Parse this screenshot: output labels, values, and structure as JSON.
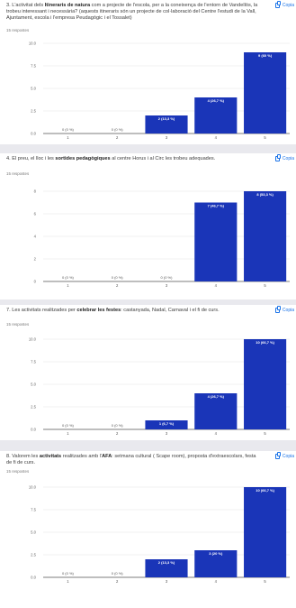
{
  "copy_label": "Copia",
  "cards": [
    {
      "q_prefix": "3. L'activitat dels ",
      "q_bold": "Itineraris de natura",
      "q_suffix": " com a projecte de l'escola, per a la coneixença de l'entorn de Vandellòs, la trobeu interessant i necessària? (aquests itineraris són un projecte de col·laboració del Centre l'estudi de la Vall, Ajuntament, escola i l'empresa Peudagògic i el Tossalet)",
      "responses": "15 respostes"
    },
    {
      "q_prefix": "4. El preu, el lloc i les ",
      "q_bold": "sortides pedagògiques",
      "q_suffix": " al centre Horus i al Circ les trobeu adequades.",
      "responses": "15 respostes"
    },
    {
      "q_prefix": "7. Les activitats realitzades per ",
      "q_bold": "celebrar les festes",
      "q_suffix": ": castanyada, Nadal, Carnaval i el fi de curs.",
      "responses": "15 respostes"
    },
    {
      "q_prefix": "8. Valorem les ",
      "q_bold": "activitats",
      "q_mid": " realitzades amb l'",
      "q_bold2": "AFA",
      "q_suffix": ": setmana cultural ( Scape room), proposta d'extraescolars, festa de fi de curs.",
      "responses": "15 respostes"
    }
  ],
  "chart_data": [
    {
      "type": "bar",
      "categories": [
        "1",
        "2",
        "3",
        "4",
        "5"
      ],
      "values": [
        0,
        0,
        2,
        4,
        9
      ],
      "labels": [
        "0 (0 %)",
        "0 (0 %)",
        "2 (13,3 %)",
        "4 (26,7 %)",
        "9 (60 %)"
      ],
      "yticks": [
        "0.0",
        "2.5",
        "5.0",
        "7.5",
        "10.0"
      ],
      "ylim": [
        0,
        10
      ],
      "bar_color": "#1a35b8"
    },
    {
      "type": "bar",
      "categories": [
        "1",
        "2",
        "3",
        "4",
        "5"
      ],
      "values": [
        0,
        0,
        0,
        7,
        8
      ],
      "labels": [
        "0 (0 %)",
        "0 (0 %)",
        "0 (0 %)",
        "7 (46,7 %)",
        "8 (53,3 %)"
      ],
      "yticks": [
        "0",
        "2",
        "4",
        "6",
        "8"
      ],
      "ylim": [
        0,
        8
      ],
      "bar_color": "#1a35b8"
    },
    {
      "type": "bar",
      "categories": [
        "1",
        "2",
        "3",
        "4",
        "5"
      ],
      "values": [
        0,
        0,
        1,
        4,
        10
      ],
      "labels": [
        "0 (0 %)",
        "0 (0 %)",
        "1 (6,7 %)",
        "4 (26,7 %)",
        "10 (66,7 %)"
      ],
      "yticks": [
        "0.0",
        "2.5",
        "5.0",
        "7.5",
        "10.0"
      ],
      "ylim": [
        0,
        10
      ],
      "bar_color": "#1a35b8"
    },
    {
      "type": "bar",
      "categories": [
        "1",
        "2",
        "3",
        "4",
        "5"
      ],
      "values": [
        0,
        0,
        2,
        3,
        10
      ],
      "labels": [
        "0 (0 %)",
        "0 (0 %)",
        "2 (13,3 %)",
        "3 (20 %)",
        "10 (66,7 %)"
      ],
      "yticks": [
        "0.0",
        "2.5",
        "5.0",
        "7.5",
        "10.0"
      ],
      "ylim": [
        0,
        10
      ],
      "bar_color": "#1a35b8"
    }
  ]
}
